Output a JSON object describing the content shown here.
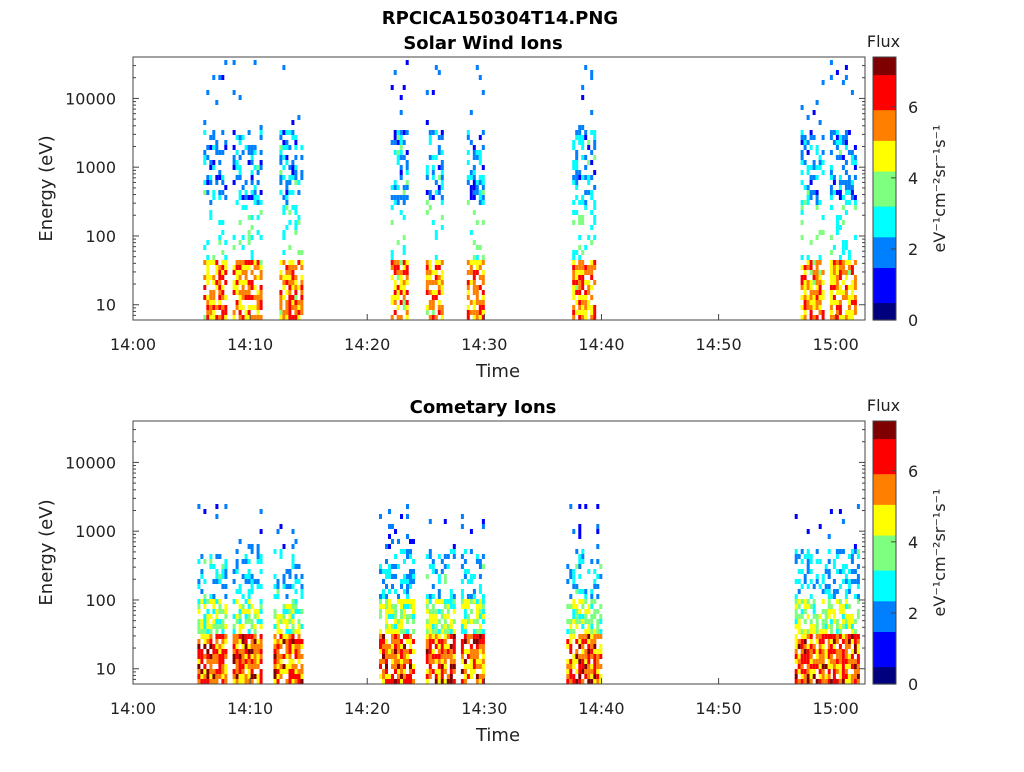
{
  "figure": {
    "file_title": "RPCICA150304T14.PNG"
  },
  "colormap": [
    "#00007f",
    "#0000ff",
    "#007fff",
    "#00ffff",
    "#7fff7f",
    "#ffff00",
    "#ff7f00",
    "#ff0000",
    "#7f0000"
  ],
  "chart_data": [
    {
      "type": "heatmap",
      "title": "Solar Wind Ions",
      "xlabel": "Time",
      "ylabel": "Energy (eV)",
      "x_ticks": [
        "14:00",
        "14:10",
        "14:20",
        "14:30",
        "14:40",
        "14:50",
        "15:00"
      ],
      "x_range_minutes": [
        0,
        62.5
      ],
      "y_scale": "log",
      "y_range": [
        6,
        40000
      ],
      "y_ticks": [
        {
          "value": 10,
          "label": "10"
        },
        {
          "value": 100,
          "label": "100"
        },
        {
          "value": 1000,
          "label": "1000"
        },
        {
          "value": 10000,
          "label": "10000"
        }
      ],
      "colorbar": {
        "title": "Flux",
        "label": "eV⁻¹cm⁻²sr⁻¹s⁻¹",
        "range": [
          0,
          7.4
        ],
        "ticks": [
          "0",
          "2",
          "4",
          "6"
        ]
      },
      "ion_bursts_minutes": [
        {
          "t0": 6.0,
          "t1": 8.0
        },
        {
          "t0": 8.5,
          "t1": 11.0
        },
        {
          "t0": 12.5,
          "t1": 14.5
        },
        {
          "t0": 22.0,
          "t1": 23.5
        },
        {
          "t0": 25.0,
          "t1": 26.5
        },
        {
          "t0": 28.5,
          "t1": 30.0
        },
        {
          "t0": 37.5,
          "t1": 39.5
        },
        {
          "t0": 57.0,
          "t1": 59.0
        },
        {
          "t0": 59.5,
          "t1": 61.8
        }
      ]
    },
    {
      "type": "heatmap",
      "title": "Cometary Ions",
      "xlabel": "Time",
      "ylabel": "Energy (eV)",
      "x_ticks": [
        "14:00",
        "14:10",
        "14:20",
        "14:30",
        "14:40",
        "14:50",
        "15:00"
      ],
      "x_range_minutes": [
        0,
        62.5
      ],
      "y_scale": "log",
      "y_range": [
        6,
        40000
      ],
      "y_ticks": [
        {
          "value": 10,
          "label": "10"
        },
        {
          "value": 100,
          "label": "100"
        },
        {
          "value": 1000,
          "label": "1000"
        },
        {
          "value": 10000,
          "label": "10000"
        }
      ],
      "colorbar": {
        "title": "Flux",
        "label": "eV⁻¹cm⁻²sr⁻¹s⁻¹",
        "range": [
          0,
          7.4
        ],
        "ticks": [
          "0",
          "2",
          "4",
          "6"
        ]
      },
      "ion_bursts_minutes": [
        {
          "t0": 5.5,
          "t1": 8.0
        },
        {
          "t0": 8.5,
          "t1": 11.0
        },
        {
          "t0": 12.0,
          "t1": 14.5
        },
        {
          "t0": 21.0,
          "t1": 24.0
        },
        {
          "t0": 25.0,
          "t1": 27.5
        },
        {
          "t0": 28.0,
          "t1": 30.0
        },
        {
          "t0": 37.0,
          "t1": 40.0
        },
        {
          "t0": 56.5,
          "t1": 59.5
        },
        {
          "t0": 59.5,
          "t1": 62.0
        }
      ]
    }
  ]
}
